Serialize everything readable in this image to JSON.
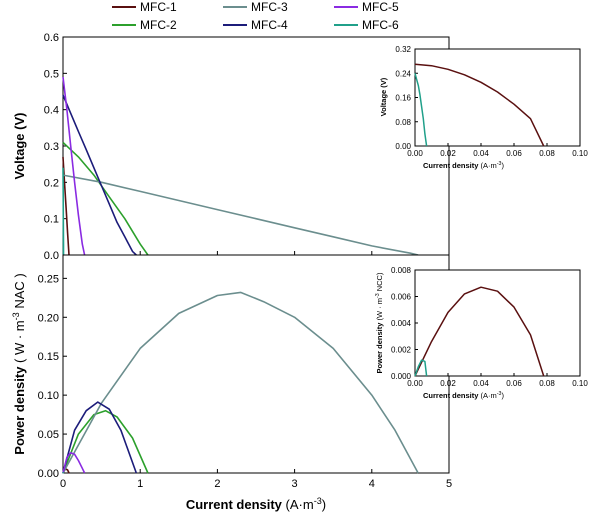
{
  "legend": [
    {
      "label": "MFC-1",
      "color": "#5a1010"
    },
    {
      "label": "MFC-2",
      "color": "#2ca02c"
    },
    {
      "label": "MFC-3",
      "color": "#6b8e8e"
    },
    {
      "label": "MFC-4",
      "color": "#1c1c7a"
    },
    {
      "label": "MFC-5",
      "color": "#8a2be2"
    },
    {
      "label": "MFC-6",
      "color": "#20a08a"
    }
  ],
  "chart_data": [
    {
      "type": "line",
      "panel": "voltage-main",
      "xlabel": "Current density (A·m⁻³)",
      "xlabel_main": "Current density",
      "xlabel_unit": "(A·m",
      "xlabel_sup": "-3",
      "xlabel_end": ")",
      "ylabel": "Voltage (V)",
      "xlim": [
        0,
        5
      ],
      "ylim": [
        0,
        0.6
      ],
      "yticks": [
        "0.0",
        "0.1",
        "0.2",
        "0.3",
        "0.4",
        "0.5",
        "0.6"
      ],
      "xticks": [],
      "series": [
        {
          "name": "MFC-1",
          "x": [
            0,
            0.02,
            0.04,
            0.06,
            0.078
          ],
          "y": [
            0.27,
            0.2,
            0.13,
            0.06,
            0.0
          ]
        },
        {
          "name": "MFC-2",
          "x": [
            0,
            0.2,
            0.4,
            0.6,
            0.8,
            1.0,
            1.1
          ],
          "y": [
            0.31,
            0.27,
            0.22,
            0.16,
            0.1,
            0.03,
            0.0
          ]
        },
        {
          "name": "MFC-3",
          "x": [
            0,
            0.5,
            1.0,
            1.5,
            2.0,
            2.5,
            3.0,
            3.5,
            4.0,
            4.5,
            4.6
          ],
          "y": [
            0.22,
            0.2,
            0.175,
            0.15,
            0.125,
            0.1,
            0.075,
            0.05,
            0.025,
            0.005,
            0.0
          ]
        },
        {
          "name": "MFC-4",
          "x": [
            0,
            0.1,
            0.2,
            0.3,
            0.4,
            0.5,
            0.6,
            0.7,
            0.8,
            0.9,
            0.95
          ],
          "y": [
            0.44,
            0.39,
            0.34,
            0.29,
            0.24,
            0.19,
            0.14,
            0.09,
            0.05,
            0.01,
            0.0
          ]
        },
        {
          "name": "MFC-5",
          "x": [
            0,
            0.05,
            0.1,
            0.15,
            0.2,
            0.25,
            0.28
          ],
          "y": [
            0.49,
            0.4,
            0.3,
            0.2,
            0.11,
            0.03,
            0.0
          ]
        },
        {
          "name": "MFC-6",
          "x": [
            0,
            0.002,
            0.004,
            0.006,
            0.007
          ],
          "y": [
            0.24,
            0.17,
            0.1,
            0.03,
            0.0
          ]
        }
      ]
    },
    {
      "type": "line",
      "panel": "voltage-inset",
      "xlabel": "Current density (A·m⁻³)",
      "xlabel_main": "Current density",
      "xlabel_unit": "(A·m",
      "xlabel_sup": "-3",
      "xlabel_end": ")",
      "ylabel": "Voltage (V)",
      "xlim": [
        0,
        0.1
      ],
      "ylim": [
        0,
        0.32
      ],
      "xticks": [
        "0.00",
        "0.02",
        "0.04",
        "0.06",
        "0.08",
        "0.10"
      ],
      "yticks": [
        "0.00",
        "0.08",
        "0.16",
        "0.24",
        "0.32"
      ],
      "series": [
        {
          "name": "MFC-1",
          "x": [
            0,
            0.01,
            0.02,
            0.03,
            0.04,
            0.05,
            0.06,
            0.07,
            0.078
          ],
          "y": [
            0.27,
            0.265,
            0.253,
            0.235,
            0.21,
            0.178,
            0.138,
            0.09,
            0.0
          ]
        },
        {
          "name": "MFC-6",
          "x": [
            0,
            0.001,
            0.002,
            0.003,
            0.004,
            0.005,
            0.006,
            0.007
          ],
          "y": [
            0.24,
            0.22,
            0.2,
            0.17,
            0.13,
            0.09,
            0.04,
            0.0
          ]
        }
      ]
    },
    {
      "type": "line",
      "panel": "power-main",
      "xlabel": "Current density (A·m⁻³)",
      "xlabel_main": "Current density",
      "xlabel_unit": "(A·m",
      "xlabel_sup": "-3",
      "xlabel_end": ")",
      "ylabel": "Power density ( W · m⁻³ NAC )",
      "ylabel_main": "Power density",
      "ylabel_unit": "( W · m",
      "ylabel_sup": "-3",
      "ylabel_end": " NAC )",
      "xlim": [
        0,
        5
      ],
      "ylim": [
        0,
        0.28
      ],
      "xticks": [
        "0",
        "1",
        "2",
        "3",
        "4",
        "5"
      ],
      "yticks": [
        "0.00",
        "0.05",
        "0.10",
        "0.15",
        "0.20",
        "0.25"
      ],
      "series": [
        {
          "name": "MFC-1",
          "x": [
            0,
            0.02,
            0.04,
            0.06,
            0.078
          ],
          "y": [
            0.0,
            0.004,
            0.005,
            0.004,
            0.0
          ]
        },
        {
          "name": "MFC-2",
          "x": [
            0,
            0.2,
            0.4,
            0.55,
            0.7,
            0.9,
            1.1
          ],
          "y": [
            0.0,
            0.05,
            0.075,
            0.08,
            0.072,
            0.045,
            0.0
          ]
        },
        {
          "name": "MFC-3",
          "x": [
            0,
            0.5,
            1.0,
            1.5,
            2.0,
            2.3,
            2.6,
            3.0,
            3.5,
            4.0,
            4.3,
            4.6
          ],
          "y": [
            0.0,
            0.09,
            0.16,
            0.205,
            0.228,
            0.232,
            0.22,
            0.2,
            0.16,
            0.1,
            0.055,
            0.0
          ]
        },
        {
          "name": "MFC-4",
          "x": [
            0,
            0.15,
            0.3,
            0.45,
            0.6,
            0.75,
            0.95
          ],
          "y": [
            0.0,
            0.055,
            0.08,
            0.091,
            0.082,
            0.055,
            0.0
          ]
        },
        {
          "name": "MFC-5",
          "x": [
            0,
            0.05,
            0.1,
            0.15,
            0.2,
            0.25,
            0.28
          ],
          "y": [
            0.0,
            0.02,
            0.026,
            0.024,
            0.016,
            0.006,
            0.0
          ]
        },
        {
          "name": "MFC-6",
          "x": [
            0,
            0.003,
            0.007
          ],
          "y": [
            0.0,
            0.0005,
            0.0
          ]
        }
      ]
    },
    {
      "type": "line",
      "panel": "power-inset",
      "xlabel": "Current density (A·m⁻³)",
      "xlabel_main": "Current density",
      "xlabel_unit": "(A·m",
      "xlabel_sup": "-3",
      "xlabel_end": ")",
      "ylabel": "Power density (W · m⁻³ NCC)",
      "ylabel_main": "Power density",
      "ylabel_unit": "(W · m",
      "ylabel_sup": "-3",
      "ylabel_end": " NCC)",
      "xlim": [
        0,
        0.1
      ],
      "ylim": [
        0,
        0.008
      ],
      "xticks": [
        "0.00",
        "0.02",
        "0.04",
        "0.06",
        "0.08",
        "0.10"
      ],
      "yticks": [
        "0.000",
        "0.002",
        "0.004",
        "0.006",
        "0.008"
      ],
      "series": [
        {
          "name": "MFC-1",
          "x": [
            0,
            0.01,
            0.02,
            0.03,
            0.04,
            0.05,
            0.06,
            0.07,
            0.078
          ],
          "y": [
            0.0,
            0.0026,
            0.0048,
            0.0062,
            0.0067,
            0.0064,
            0.0052,
            0.0031,
            0.0
          ]
        },
        {
          "name": "MFC-6",
          "x": [
            0,
            0.002,
            0.004,
            0.006,
            0.007
          ],
          "y": [
            0.0,
            0.0007,
            0.0012,
            0.0011,
            0.0
          ]
        }
      ]
    }
  ]
}
